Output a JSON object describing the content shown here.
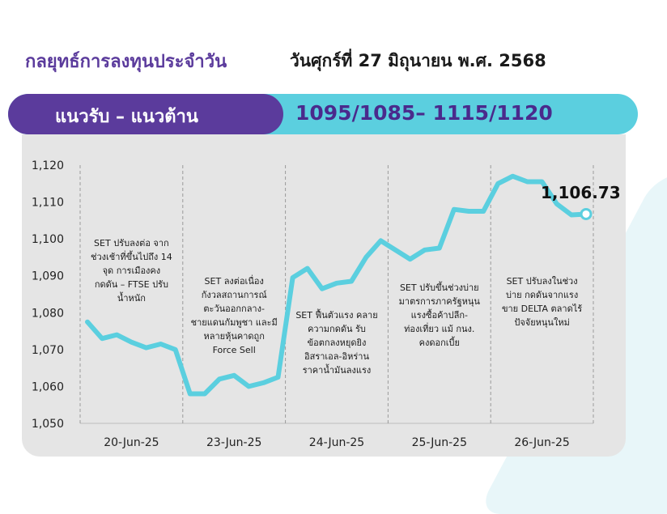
{
  "header": {
    "title": "กลยุทธ์การลงทุนประจำวัน",
    "date": "วันศุกร์ที่ 27 มิถุนายน พ.ศ. 2568"
  },
  "band": {
    "label": "แนวรับ – แนวต้าน",
    "value": "1095/1085– 1115/1120"
  },
  "colors": {
    "purple": "#5b3b9c",
    "cyan": "#5bcfdf",
    "line": "#5bcfdf",
    "panel": "#e5e5e5"
  },
  "chart_data": {
    "type": "line",
    "ylim": [
      1050,
      1120
    ],
    "y_ticks": [
      "1,050",
      "1,060",
      "1,070",
      "1,080",
      "1,090",
      "1,100",
      "1,110",
      "1,120"
    ],
    "x_labels": [
      "20-Jun-25",
      "23-Jun-25",
      "24-Jun-25",
      "25-Jun-25",
      "26-Jun-25"
    ],
    "grid": "vertical dashed separators between sessions",
    "series": [
      {
        "values": [
          1077.5,
          1073.0,
          1074.0,
          1072.0,
          1070.5,
          1071.5,
          1070.0,
          1058.0,
          1058.0,
          1062.0,
          1063.0,
          1060.0,
          1061.0,
          1062.5,
          1089.5,
          1092.0,
          1086.5,
          1088.0,
          1088.5,
          1095.0,
          1099.5,
          1097.0,
          1094.5,
          1097.0,
          1097.5,
          1108.0,
          1107.5,
          1107.5,
          1115.0,
          1117.0,
          1115.5,
          1115.5,
          1109.5,
          1106.5,
          1106.73
        ]
      }
    ],
    "last_value_label": "1,106.73",
    "annotations": [
      "SET ปรับลงต่อ จาก\nช่วงเช้าที่ขึ้นไปถึง 14\nจุด การเมืองคง\nกดดัน – FTSE ปรับ\nน้ำหนัก",
      "SET ลงต่อเนื่อง\nกังวลสถานการณ์\nตะวันออกกลาง-\nชายแดนกัมพูชา และมี\nหลายหุ้นคาดถูก\nForce Sell",
      "SET ฟื้นตัวแรง คลาย\nความกดดัน รับ\nข้อตกลงหยุดยิง\nอิสราเอล-อิหร่าน\nราคาน้ำมันลงแรง",
      "SET ปรับขึ้นช่วงบ่าย\nมาตรการภาครัฐหนุน\nแรงซื้อค้าปลีก-\nท่องเที่ยว แม้ กนง.\nคงดอกเบี้ย",
      "SET ปรับลงในช่วง\nบ่าย กดดันจากแรง\nขาย DELTA ตลาดไร้\nปัจจัยหนุนใหม่"
    ]
  }
}
